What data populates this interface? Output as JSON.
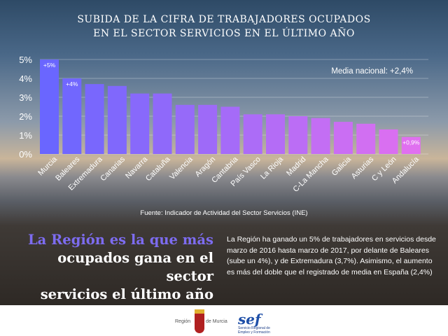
{
  "title_lines": [
    "SUBIDA DE LA CIFRA DE TRABAJADORES OCUPADOS",
    "EN EL SECTOR SERVICIOS EN EL ÚLTIMO AÑO"
  ],
  "chart_data": {
    "type": "bar",
    "categories": [
      "Murcia",
      "Baleares",
      "Extremadura",
      "Canarias",
      "Navarra",
      "Cataluña",
      "Valencia",
      "Aragón",
      "Cantabria",
      "País Vasco",
      "La Rioja",
      "Madrid",
      "C-La Mancha",
      "Galicia",
      "Asturias",
      "C y León",
      "Andalucía"
    ],
    "values": [
      5,
      4,
      3.7,
      3.6,
      3.2,
      3.2,
      2.6,
      2.6,
      2.5,
      2.1,
      2.1,
      2.0,
      1.9,
      1.7,
      1.6,
      1.3,
      0.9
    ],
    "data_labels": {
      "0": "+5%",
      "1": "+4%",
      "16": "+0,9%"
    },
    "yticks": [
      "0%",
      "1%",
      "2%",
      "3%",
      "4%",
      "5%"
    ],
    "ylim": [
      0,
      5
    ],
    "grid": true,
    "annotation": "Media nacional: +2,4%",
    "colors": {
      "start": "#6a66ff",
      "end": "#e070f0"
    }
  },
  "source": "Fuente: Indicador de Actividad del Sector Servicios (INE)",
  "headline": {
    "line1": "La Región es la que más",
    "line2": "ocupados gana en el sector",
    "line3": "servicios el último año"
  },
  "body": "La Región ha ganado un 5% de trabajadores en servicios desde marzo de 2016 hasta marzo de 2017, por delante de Baleares (sube un 4%), y de Extremadura (3,7%). Asimismo, el aumento es más del doble que el registrado de media en España (2,4%)",
  "logos": {
    "region_left": "Región",
    "region_right": "de Murcia",
    "sef": "sef",
    "sef_sub": "Servicio Regional de Empleo y Formación"
  }
}
